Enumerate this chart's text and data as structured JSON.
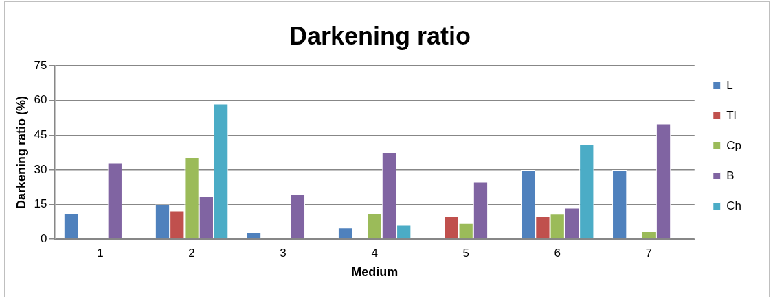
{
  "chart_data": {
    "type": "bar",
    "title": "Darkening ratio",
    "xlabel": "Medium",
    "ylabel": "Darkening ratio (%)",
    "categories": [
      "1",
      "2",
      "3",
      "4",
      "5",
      "6",
      "7"
    ],
    "series": [
      {
        "name": "L",
        "color": "#4f81bd",
        "values": [
          11.3,
          15,
          3,
          5,
          null,
          30,
          30
        ]
      },
      {
        "name": "Tl",
        "color": "#c0504d",
        "values": [
          null,
          12.3,
          null,
          null,
          9.8,
          9.8,
          null
        ]
      },
      {
        "name": "Cp",
        "color": "#9bbb59",
        "values": [
          null,
          35.5,
          null,
          11.3,
          6.9,
          10.9,
          3.3
        ]
      },
      {
        "name": "B",
        "color": "#8064a2",
        "values": [
          33.1,
          18.5,
          19.3,
          37.4,
          24.8,
          13.5,
          50
        ]
      },
      {
        "name": "Ch",
        "color": "#4bacc6",
        "values": [
          null,
          58.6,
          null,
          6.1,
          null,
          41,
          null
        ]
      }
    ],
    "ylim": [
      0,
      75
    ],
    "yticks": [
      0,
      15,
      30,
      45,
      60,
      75
    ],
    "grid": "y",
    "legend": "right"
  }
}
